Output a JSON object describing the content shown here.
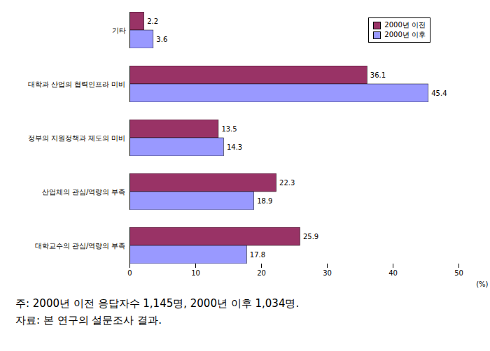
{
  "chart_data": {
    "type": "bar",
    "orientation": "horizontal",
    "categories": [
      "기타",
      "대학과 산업의 협력인프라 미비",
      "정부의 지원정책과 제도의 미비",
      "산업체의 관심/역량의 부족",
      "대학교수의 관심/역량의 부족"
    ],
    "series": [
      {
        "name": "2000년 이전",
        "color": "#993366",
        "values": [
          2.2,
          36.1,
          13.5,
          22.3,
          25.9
        ]
      },
      {
        "name": "2000년 이후",
        "color": "#9999ff",
        "values": [
          3.6,
          45.4,
          14.3,
          18.9,
          17.8
        ]
      }
    ],
    "xlim": [
      0,
      50
    ],
    "xticks": [
      0,
      10,
      20,
      30,
      40,
      50
    ],
    "xlabel": "(%)",
    "data_labels": true,
    "legend": "upper right",
    "grid": false,
    "notes": [
      "주: 2000년 이전 응답자수 1,145명, 2000년 이후 1,034명.",
      "자료: 본 연구의 설문조사 결과."
    ]
  }
}
